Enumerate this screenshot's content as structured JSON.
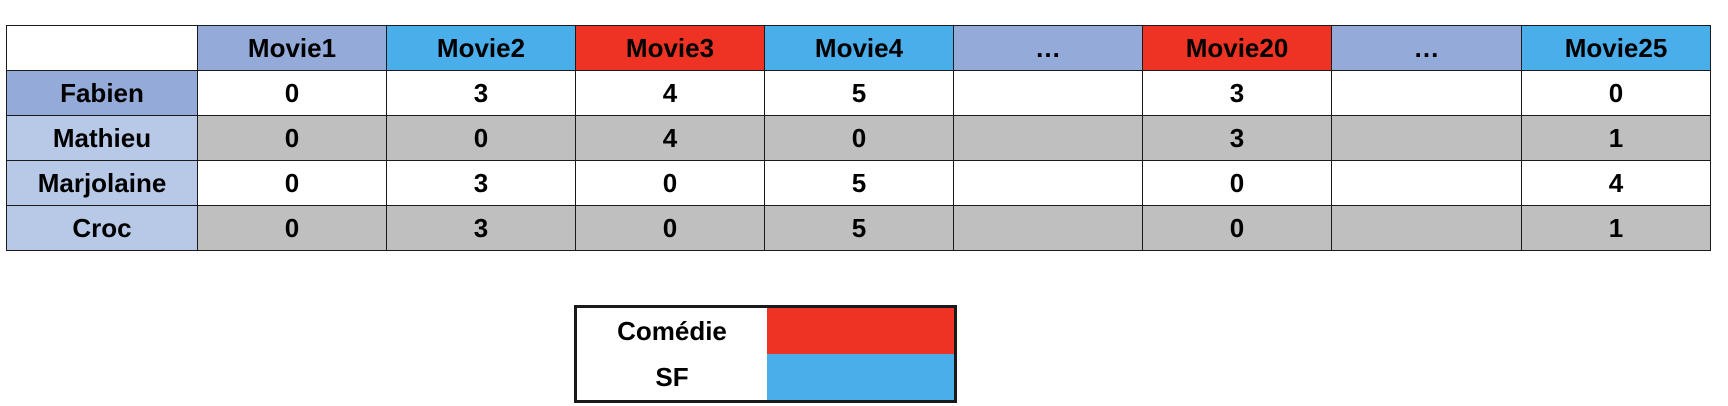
{
  "colors": {
    "header_blue": "#94aad8",
    "sf": "#4aaeea",
    "comedie": "#ee3325",
    "row_header_dark": "#94aad8",
    "row_header_light": "#b8c9e8",
    "row_white": "#ffffff",
    "row_gray": "#bfbfbf"
  },
  "table": {
    "columns": [
      {
        "label": "Movie1",
        "genre": "none"
      },
      {
        "label": "Movie2",
        "genre": "sf"
      },
      {
        "label": "Movie3",
        "genre": "comedie"
      },
      {
        "label": "Movie4",
        "genre": "sf"
      },
      {
        "label": "…",
        "genre": "none"
      },
      {
        "label": "Movie20",
        "genre": "comedie"
      },
      {
        "label": "…",
        "genre": "none"
      },
      {
        "label": "Movie25",
        "genre": "sf"
      }
    ],
    "rows": [
      {
        "name": "Fabien",
        "values": [
          "0",
          "3",
          "4",
          "5",
          "",
          "3",
          "",
          "0"
        ]
      },
      {
        "name": "Mathieu",
        "values": [
          "0",
          "0",
          "4",
          "0",
          "",
          "3",
          "",
          "1"
        ]
      },
      {
        "name": "Marjolaine",
        "values": [
          "0",
          "3",
          "0",
          "5",
          "",
          "0",
          "",
          "4"
        ]
      },
      {
        "name": "Croc",
        "values": [
          "0",
          "3",
          "0",
          "5",
          "",
          "0",
          "",
          "1"
        ]
      }
    ]
  },
  "legend": {
    "items": [
      {
        "label": "Comédie",
        "color": "#ee3325"
      },
      {
        "label": "SF",
        "color": "#4aaeea"
      }
    ]
  }
}
